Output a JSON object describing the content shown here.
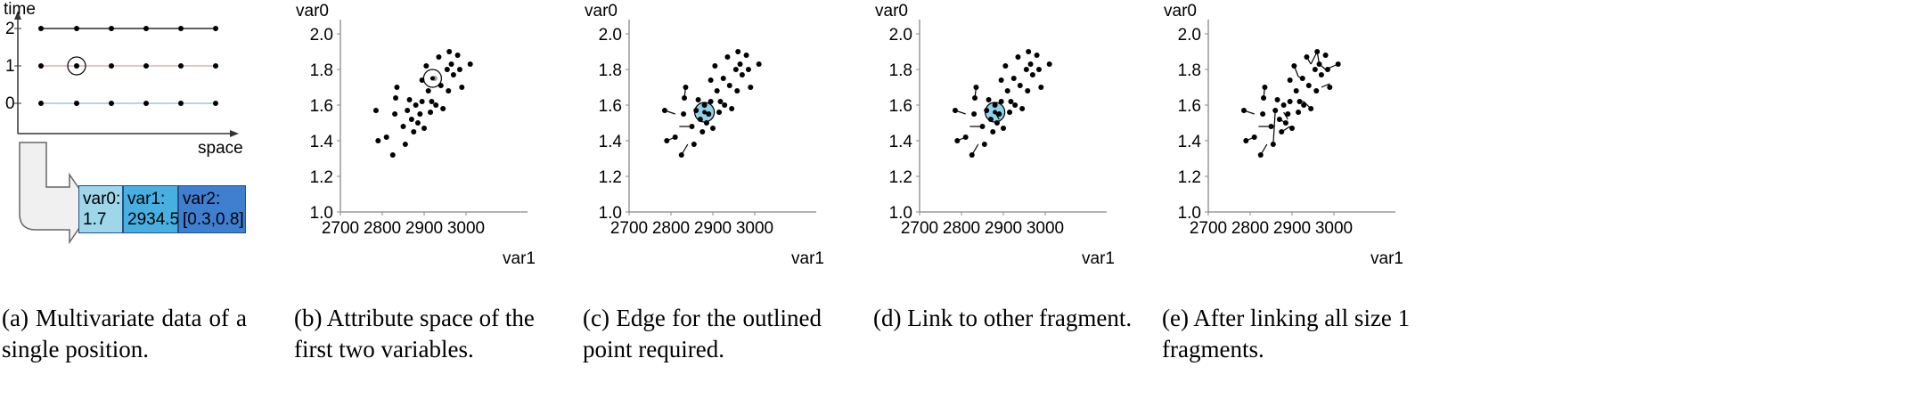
{
  "panel_a": {
    "axis_time": "time",
    "axis_space": "space",
    "ticks": [
      "2",
      "1",
      "0"
    ],
    "record": [
      {
        "name": "var0:",
        "value": "1.7",
        "color": "#9ed6ea"
      },
      {
        "name": "var1:",
        "value": "2934.5",
        "color": "#47b0e0"
      },
      {
        "name": "var2:",
        "value": "[0.3,0.8]",
        "color": "#3f7fcf"
      }
    ],
    "caption_l1": "(a) Multivariate data of a",
    "caption_l2": "single position."
  },
  "scatter_panels": [
    {
      "id": "b",
      "caption_l1": "(b) Attribute space of the",
      "caption_l2": "first two variables."
    },
    {
      "id": "c",
      "caption_l1": "(c) Edge for the outlined",
      "caption_l2": "point required."
    },
    {
      "id": "d",
      "caption_l1": "(d) Link to other fragment.",
      "caption_l2": ""
    },
    {
      "id": "e",
      "caption_l1": "(e) After linking all size 1",
      "caption_l2": "fragments."
    }
  ],
  "colors": {
    "highlight": "#8fd3ea",
    "line_red": "#d9a0a0",
    "line_blue": "#8cb6d0",
    "line_dark": "#000000",
    "arrow_fill": "#f0f0f0"
  },
  "chart_data": [
    {
      "type": "scatter",
      "id": "b",
      "xlabel": "var1",
      "ylabel": "var0",
      "xlim": [
        2700,
        3100
      ],
      "ylim": [
        1.0,
        2.0
      ],
      "xticks": [
        "2700",
        "2800",
        "2900",
        "3000"
      ],
      "yticks": [
        "2.0",
        "1.8",
        "1.6",
        "1.4",
        "1.2",
        "1.0"
      ],
      "points": [
        [
          2785,
          1.57
        ],
        [
          2790,
          1.4
        ],
        [
          2810,
          1.42
        ],
        [
          2825,
          1.32
        ],
        [
          2835,
          1.7
        ],
        [
          2832,
          1.64
        ],
        [
          2830,
          1.55
        ],
        [
          2850,
          1.48
        ],
        [
          2855,
          1.38
        ],
        [
          2860,
          1.57
        ],
        [
          2865,
          1.63
        ],
        [
          2870,
          1.52
        ],
        [
          2875,
          1.45
        ],
        [
          2880,
          1.6
        ],
        [
          2885,
          1.5
        ],
        [
          2890,
          1.55
        ],
        [
          2895,
          1.74
        ],
        [
          2895,
          1.62
        ],
        [
          2900,
          1.47
        ],
        [
          2905,
          1.82
        ],
        [
          2910,
          1.68
        ],
        [
          2915,
          1.56
        ],
        [
          2918,
          1.62
        ],
        [
          2925,
          1.75
        ],
        [
          2928,
          1.6
        ],
        [
          2935,
          1.87
        ],
        [
          2940,
          1.71
        ],
        [
          2945,
          1.58
        ],
        [
          2955,
          1.8
        ],
        [
          2958,
          1.68
        ],
        [
          2960,
          1.9
        ],
        [
          2965,
          1.83
        ],
        [
          2970,
          1.77
        ],
        [
          2980,
          1.88
        ],
        [
          2985,
          1.8
        ],
        [
          2990,
          1.7
        ],
        [
          3010,
          1.83
        ]
      ],
      "highlight": {
        "point": [
          2920,
          1.75
        ],
        "style": "outlined"
      },
      "edges": []
    },
    {
      "type": "scatter",
      "id": "c",
      "xlabel": "var1",
      "ylabel": "var0",
      "xlim": [
        2700,
        3100
      ],
      "ylim": [
        1.0,
        2.0
      ],
      "xticks": [
        "2700",
        "2800",
        "2900",
        "3000"
      ],
      "yticks": [
        "2.0",
        "1.8",
        "1.6",
        "1.4",
        "1.2",
        "1.0"
      ],
      "points": [
        [
          2785,
          1.57
        ],
        [
          2790,
          1.4
        ],
        [
          2810,
          1.42
        ],
        [
          2825,
          1.32
        ],
        [
          2835,
          1.7
        ],
        [
          2832,
          1.64
        ],
        [
          2830,
          1.55
        ],
        [
          2850,
          1.48
        ],
        [
          2855,
          1.38
        ],
        [
          2860,
          1.57
        ],
        [
          2865,
          1.63
        ],
        [
          2870,
          1.52
        ],
        [
          2875,
          1.45
        ],
        [
          2880,
          1.6
        ],
        [
          2885,
          1.5
        ],
        [
          2890,
          1.55
        ],
        [
          2895,
          1.74
        ],
        [
          2895,
          1.62
        ],
        [
          2900,
          1.47
        ],
        [
          2905,
          1.82
        ],
        [
          2910,
          1.68
        ],
        [
          2915,
          1.56
        ],
        [
          2918,
          1.62
        ],
        [
          2925,
          1.75
        ],
        [
          2928,
          1.6
        ],
        [
          2935,
          1.87
        ],
        [
          2940,
          1.71
        ],
        [
          2945,
          1.58
        ],
        [
          2955,
          1.8
        ],
        [
          2958,
          1.68
        ],
        [
          2960,
          1.9
        ],
        [
          2965,
          1.83
        ],
        [
          2970,
          1.77
        ],
        [
          2980,
          1.88
        ],
        [
          2985,
          1.8
        ],
        [
          2990,
          1.7
        ],
        [
          3010,
          1.83
        ]
      ],
      "highlight": {
        "point": [
          2880,
          1.56
        ],
        "style": "filled"
      },
      "edges": [
        [
          [
            2785,
            1.57
          ],
          [
            2810,
            1.55
          ]
        ],
        [
          [
            2790,
            1.4
          ],
          [
            2810,
            1.42
          ]
        ],
        [
          [
            2825,
            1.32
          ],
          [
            2840,
            1.38
          ]
        ],
        [
          [
            2835,
            1.7
          ],
          [
            2832,
            1.64
          ]
        ],
        [
          [
            2820,
            1.48
          ],
          [
            2850,
            1.48
          ]
        ]
      ]
    },
    {
      "type": "scatter",
      "id": "d",
      "xlabel": "var1",
      "ylabel": "var0",
      "xlim": [
        2700,
        3100
      ],
      "ylim": [
        1.0,
        2.0
      ],
      "xticks": [
        "2700",
        "2800",
        "2900",
        "3000"
      ],
      "yticks": [
        "2.0",
        "1.8",
        "1.6",
        "1.4",
        "1.2",
        "1.0"
      ],
      "points": [
        [
          2785,
          1.57
        ],
        [
          2790,
          1.4
        ],
        [
          2810,
          1.42
        ],
        [
          2825,
          1.32
        ],
        [
          2835,
          1.7
        ],
        [
          2832,
          1.64
        ],
        [
          2830,
          1.55
        ],
        [
          2850,
          1.48
        ],
        [
          2855,
          1.38
        ],
        [
          2860,
          1.57
        ],
        [
          2865,
          1.63
        ],
        [
          2870,
          1.52
        ],
        [
          2875,
          1.45
        ],
        [
          2880,
          1.6
        ],
        [
          2885,
          1.5
        ],
        [
          2890,
          1.55
        ],
        [
          2895,
          1.74
        ],
        [
          2895,
          1.62
        ],
        [
          2900,
          1.47
        ],
        [
          2905,
          1.82
        ],
        [
          2910,
          1.68
        ],
        [
          2915,
          1.56
        ],
        [
          2918,
          1.62
        ],
        [
          2925,
          1.75
        ],
        [
          2928,
          1.6
        ],
        [
          2935,
          1.87
        ],
        [
          2940,
          1.71
        ],
        [
          2945,
          1.58
        ],
        [
          2955,
          1.8
        ],
        [
          2958,
          1.68
        ],
        [
          2960,
          1.9
        ],
        [
          2965,
          1.83
        ],
        [
          2970,
          1.77
        ],
        [
          2980,
          1.88
        ],
        [
          2985,
          1.8
        ],
        [
          2990,
          1.7
        ],
        [
          3010,
          1.83
        ]
      ],
      "highlight": {
        "point": [
          2880,
          1.56
        ],
        "style": "filled"
      },
      "edges": [
        [
          [
            2785,
            1.57
          ],
          [
            2810,
            1.55
          ]
        ],
        [
          [
            2790,
            1.4
          ],
          [
            2810,
            1.42
          ]
        ],
        [
          [
            2825,
            1.32
          ],
          [
            2840,
            1.38
          ]
        ],
        [
          [
            2835,
            1.7
          ],
          [
            2832,
            1.64
          ]
        ],
        [
          [
            2820,
            1.48
          ],
          [
            2850,
            1.48
          ]
        ],
        [
          [
            2880,
            1.56
          ],
          [
            2890,
            1.52
          ]
        ]
      ]
    },
    {
      "type": "scatter",
      "id": "e",
      "xlabel": "var1",
      "ylabel": "var0",
      "xlim": [
        2700,
        3100
      ],
      "ylim": [
        1.0,
        2.0
      ],
      "xticks": [
        "2700",
        "2800",
        "2900",
        "3000"
      ],
      "yticks": [
        "2.0",
        "1.8",
        "1.6",
        "1.4",
        "1.2",
        "1.0"
      ],
      "points": [
        [
          2785,
          1.57
        ],
        [
          2790,
          1.4
        ],
        [
          2810,
          1.42
        ],
        [
          2825,
          1.32
        ],
        [
          2835,
          1.7
        ],
        [
          2832,
          1.64
        ],
        [
          2830,
          1.55
        ],
        [
          2850,
          1.48
        ],
        [
          2855,
          1.38
        ],
        [
          2860,
          1.57
        ],
        [
          2865,
          1.63
        ],
        [
          2870,
          1.52
        ],
        [
          2875,
          1.45
        ],
        [
          2880,
          1.6
        ],
        [
          2885,
          1.5
        ],
        [
          2890,
          1.55
        ],
        [
          2895,
          1.74
        ],
        [
          2895,
          1.62
        ],
        [
          2900,
          1.47
        ],
        [
          2905,
          1.82
        ],
        [
          2910,
          1.68
        ],
        [
          2915,
          1.56
        ],
        [
          2918,
          1.62
        ],
        [
          2925,
          1.75
        ],
        [
          2928,
          1.6
        ],
        [
          2935,
          1.87
        ],
        [
          2940,
          1.71
        ],
        [
          2945,
          1.58
        ],
        [
          2955,
          1.8
        ],
        [
          2958,
          1.68
        ],
        [
          2960,
          1.9
        ],
        [
          2965,
          1.83
        ],
        [
          2970,
          1.77
        ],
        [
          2980,
          1.88
        ],
        [
          2985,
          1.8
        ],
        [
          2990,
          1.7
        ],
        [
          3010,
          1.83
        ]
      ],
      "highlight": null,
      "edges": [
        [
          [
            2785,
            1.57
          ],
          [
            2810,
            1.55
          ]
        ],
        [
          [
            2790,
            1.4
          ],
          [
            2810,
            1.42
          ]
        ],
        [
          [
            2825,
            1.32
          ],
          [
            2840,
            1.38
          ]
        ],
        [
          [
            2835,
            1.7
          ],
          [
            2832,
            1.64
          ]
        ],
        [
          [
            2820,
            1.48
          ],
          [
            2850,
            1.48
          ]
        ],
        [
          [
            2880,
            1.56
          ],
          [
            2890,
            1.52
          ]
        ],
        [
          [
            2855,
            1.38
          ],
          [
            2860,
            1.57
          ]
        ],
        [
          [
            2905,
            1.82
          ],
          [
            2915,
            1.76
          ]
        ],
        [
          [
            2915,
            1.76
          ],
          [
            2925,
            1.75
          ]
        ],
        [
          [
            2935,
            1.87
          ],
          [
            2945,
            1.83
          ]
        ],
        [
          [
            2945,
            1.83
          ],
          [
            2960,
            1.9
          ]
        ],
        [
          [
            2960,
            1.9
          ],
          [
            2965,
            1.83
          ]
        ],
        [
          [
            2965,
            1.83
          ],
          [
            2980,
            1.8
          ]
        ],
        [
          [
            2980,
            1.8
          ],
          [
            3010,
            1.83
          ]
        ],
        [
          [
            2970,
            1.7
          ],
          [
            2990,
            1.72
          ]
        ],
        [
          [
            2915,
            1.62
          ],
          [
            2928,
            1.62
          ]
        ],
        [
          [
            2928,
            1.62
          ],
          [
            2945,
            1.58
          ]
        ],
        [
          [
            2870,
            1.52
          ],
          [
            2885,
            1.5
          ]
        ],
        [
          [
            2875,
            1.45
          ],
          [
            2895,
            1.48
          ]
        ]
      ]
    }
  ]
}
